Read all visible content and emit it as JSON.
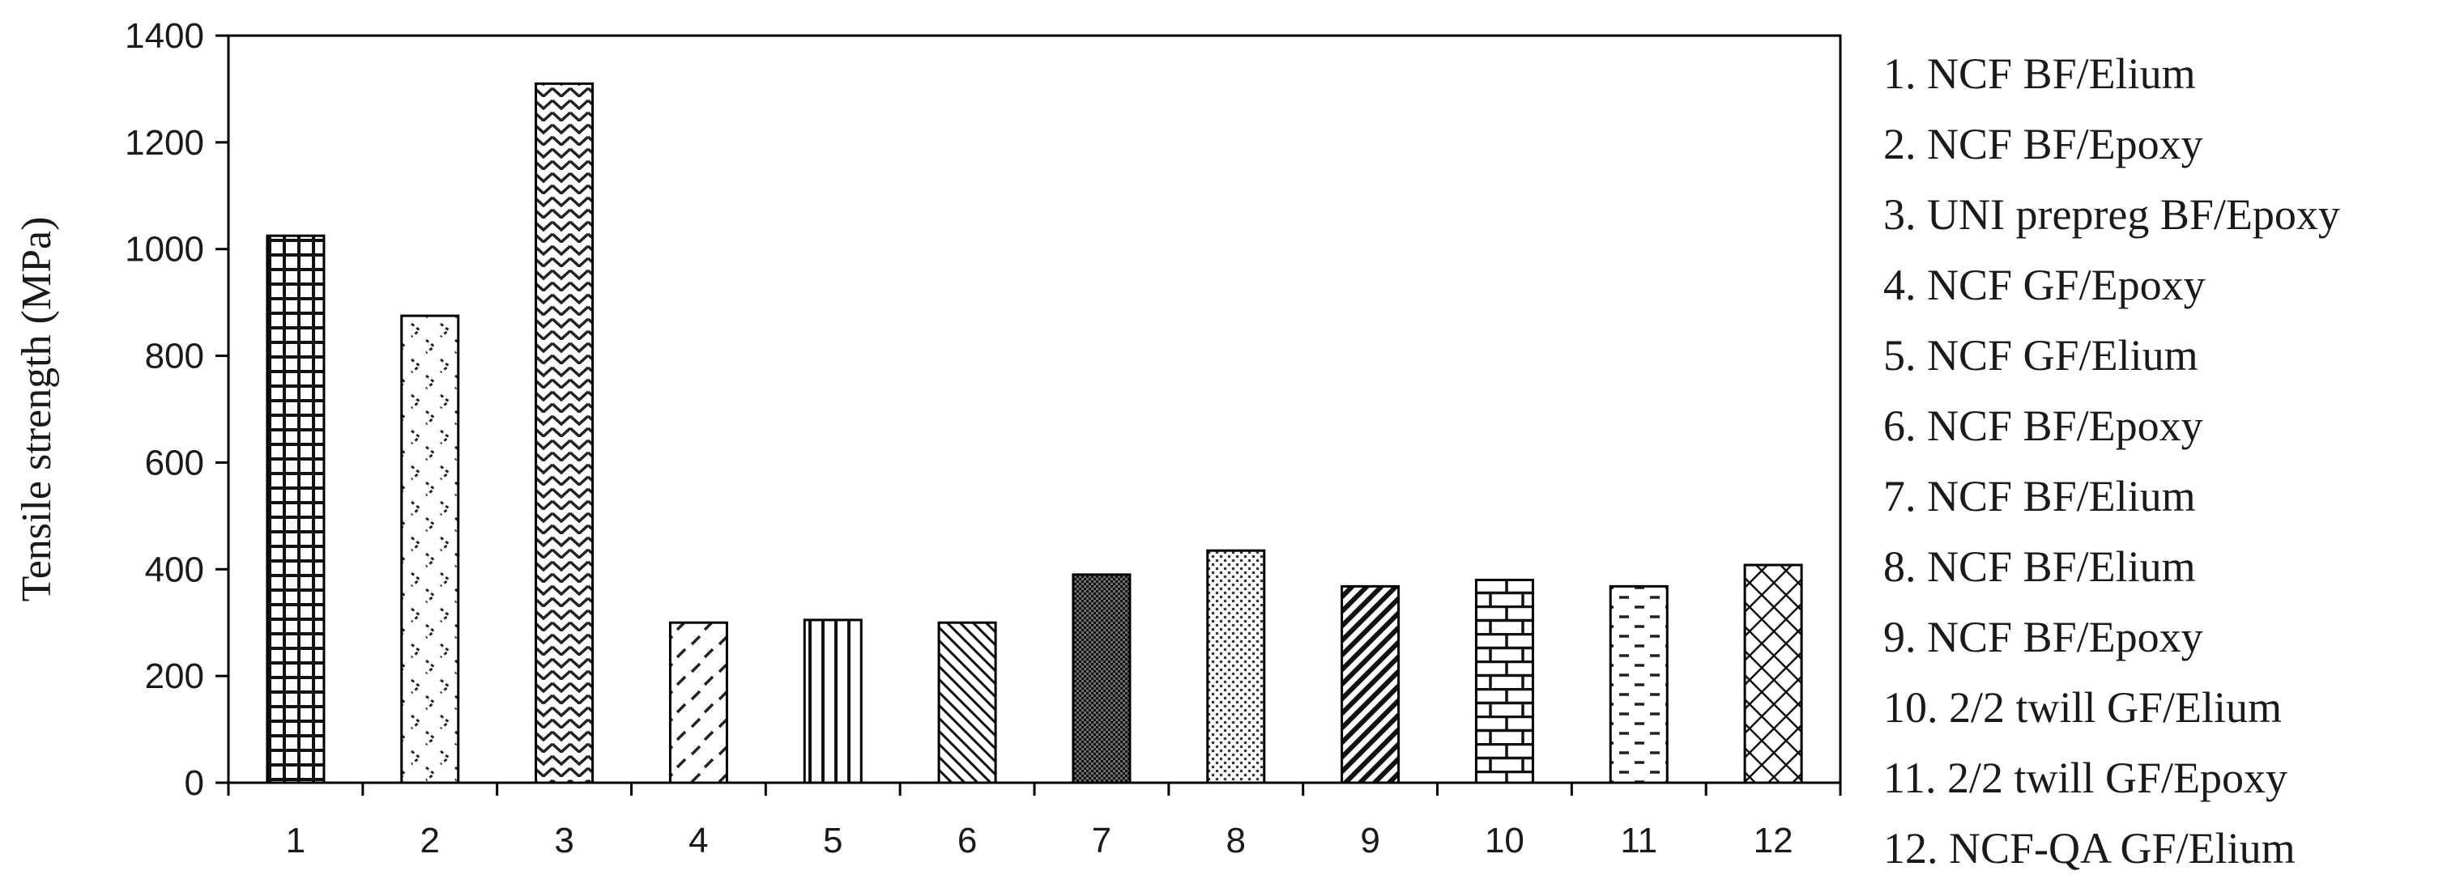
{
  "chart_data": {
    "type": "bar",
    "categories": [
      "1",
      "2",
      "3",
      "4",
      "5",
      "6",
      "7",
      "8",
      "9",
      "10",
      "11",
      "12"
    ],
    "values": [
      1025,
      875,
      1310,
      300,
      305,
      300,
      390,
      435,
      368,
      380,
      368,
      408
    ],
    "ylabel": "Tensile strength (MPa)",
    "xlabel": "",
    "ylim": [
      0,
      1400
    ],
    "yticks": [
      "0",
      "200",
      "400",
      "600",
      "800",
      "1000",
      "1200",
      "1400"
    ],
    "grid": false,
    "legend_position": "right",
    "legend": [
      "1. NCF BF/Elium",
      "2. NCF BF/Epoxy",
      "3. UNI prepreg BF/Epoxy",
      "4. NCF GF/Epoxy",
      "5. NCF GF/Elium",
      "6. NCF BF/Epoxy",
      "7. NCF BF/Elium",
      "8. NCF BF/Elium",
      "9. NCF BF/Epoxy",
      "10. 2/2 twill GF/Elium",
      "11. 2/2 twill GF/Epoxy",
      "12. NCF-QA GF/Elium"
    ],
    "bar_patterns": [
      "grid",
      "zigzag-dots",
      "zigzag",
      "dashes-diagonal",
      "vertical-lines",
      "diagonal-lines",
      "dense-dots",
      "fine-dots",
      "thick-diagonal",
      "brick",
      "dashes-horizontal",
      "crosshatch"
    ]
  }
}
